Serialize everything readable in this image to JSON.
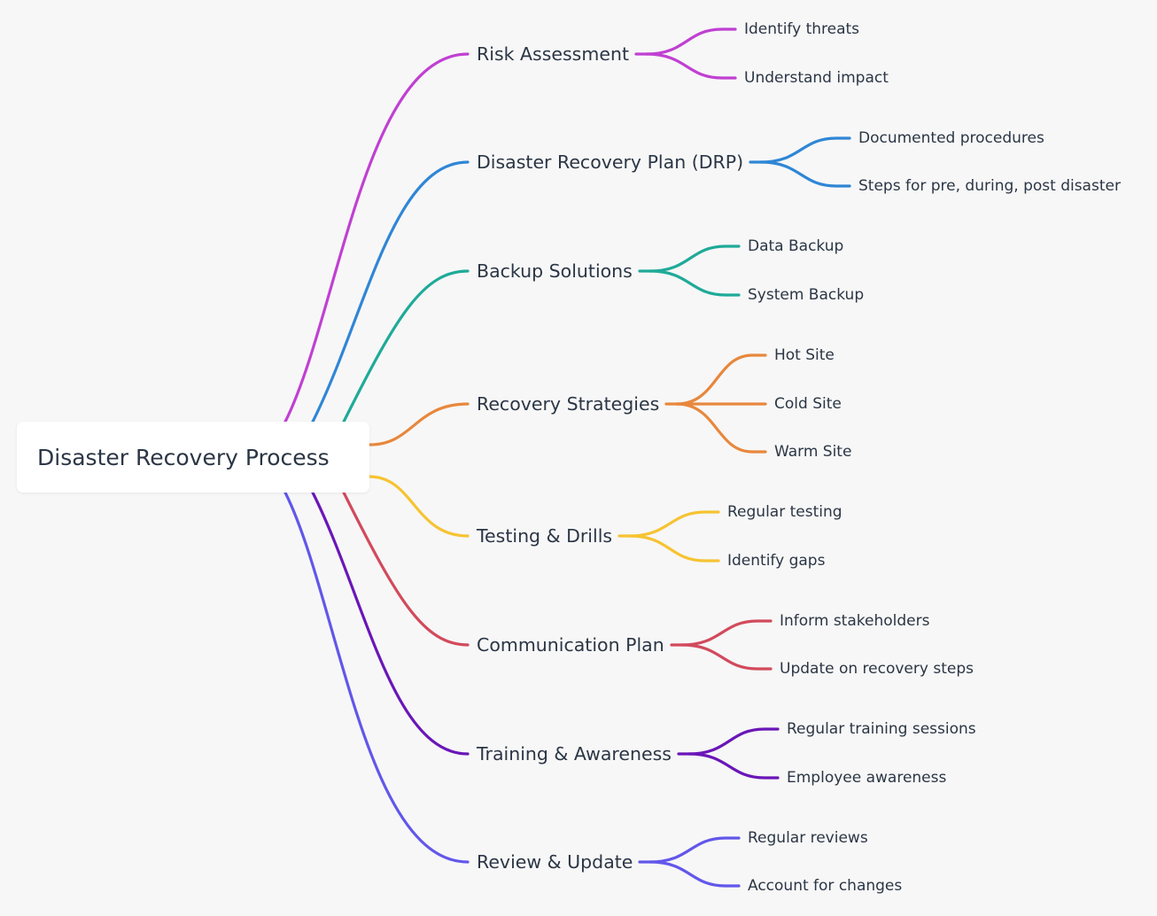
{
  "root": {
    "label": "Disaster Recovery Process"
  },
  "branches": [
    {
      "label": "Risk Assessment",
      "color": "#c040d2",
      "children": [
        "Identify threats",
        "Understand impact"
      ]
    },
    {
      "label": "Disaster Recovery Plan (DRP)",
      "color": "#2f86d6",
      "children": [
        "Documented procedures",
        "Steps for pre, during, post disaster"
      ]
    },
    {
      "label": "Backup Solutions",
      "color": "#1faa99",
      "children": [
        "Data Backup",
        "System Backup"
      ]
    },
    {
      "label": "Recovery Strategies",
      "color": "#e8873c",
      "children": [
        "Hot Site",
        "Cold Site",
        "Warm Site"
      ]
    },
    {
      "label": "Testing & Drills",
      "color": "#f6c332",
      "children": [
        "Regular testing",
        "Identify gaps"
      ]
    },
    {
      "label": "Communication Plan",
      "color": "#d24a5c",
      "children": [
        "Inform stakeholders",
        "Update on recovery steps"
      ]
    },
    {
      "label": "Training & Awareness",
      "color": "#6a16b8",
      "children": [
        "Regular training sessions",
        "Employee awareness"
      ]
    },
    {
      "label": "Review & Update",
      "color": "#6257ea",
      "children": [
        "Regular reviews",
        "Account for changes"
      ]
    }
  ]
}
